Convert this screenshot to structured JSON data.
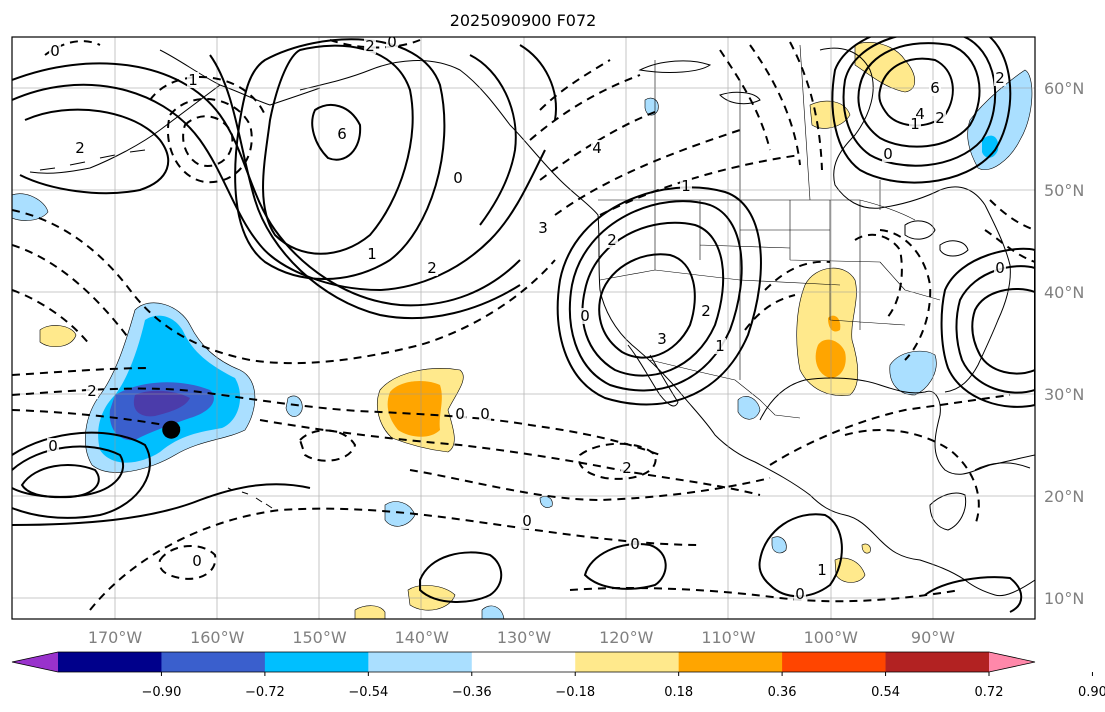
{
  "title": "2025090900 F072",
  "map": {
    "lon_range": [
      -180,
      -80
    ],
    "lat_range": [
      8,
      65
    ],
    "lon_ticks": [
      {
        "value": -170,
        "label": "170°W"
      },
      {
        "value": -160,
        "label": "160°W"
      },
      {
        "value": -150,
        "label": "150°W"
      },
      {
        "value": -140,
        "label": "140°W"
      },
      {
        "value": -130,
        "label": "130°W"
      },
      {
        "value": -120,
        "label": "120°W"
      },
      {
        "value": -110,
        "label": "110°W"
      },
      {
        "value": -100,
        "label": "100°W"
      },
      {
        "value": -90,
        "label": "90°W"
      }
    ],
    "lat_ticks": [
      {
        "value": 60,
        "label": "60°N"
      },
      {
        "value": 50,
        "label": "50°N"
      },
      {
        "value": 40,
        "label": "40°N"
      },
      {
        "value": 30,
        "label": "30°N"
      },
      {
        "value": 20,
        "label": "20°N"
      },
      {
        "value": 10,
        "label": "10°N"
      }
    ],
    "marker": {
      "name": "black-dot-marker",
      "lon": -164.5,
      "lat": 26.5
    },
    "contour_labels": [
      "0",
      "2",
      "1",
      "6",
      "2",
      "0",
      "4",
      "3",
      "2",
      "1",
      "0",
      "2",
      "3",
      "1",
      "6",
      "4",
      "2",
      "2",
      "1",
      "0",
      "0",
      "2",
      "1",
      "0",
      "2",
      "0",
      "0",
      "0",
      "1",
      "0",
      "0",
      "0",
      "2",
      "0"
    ]
  },
  "colorbar": {
    "colors": [
      "#9932cc",
      "#00008b",
      "#3a5fcd",
      "#00bfff",
      "#aadfff",
      "#ffffff",
      "#ffe98c",
      "#ffa500",
      "#ff4500",
      "#b22222",
      "#ff88aa"
    ],
    "tick_labels": [
      "−0.90",
      "−0.72",
      "−0.54",
      "−0.36",
      "−0.18",
      "0.18",
      "0.36",
      "0.54",
      "0.72",
      "0.90"
    ]
  }
}
